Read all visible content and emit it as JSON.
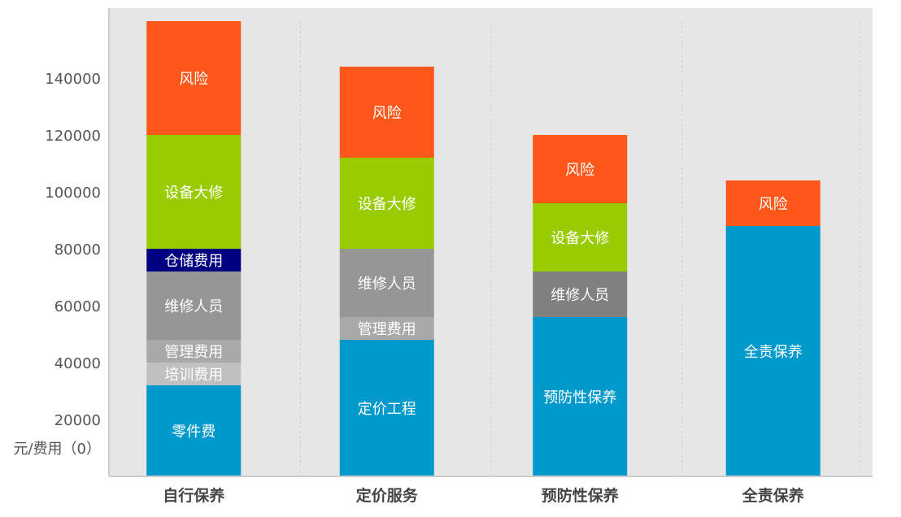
{
  "chart_data": {
    "type": "bar",
    "stacked": true,
    "categories": [
      "自行保养",
      "定价服务",
      "预防性保养",
      "全责保养"
    ],
    "ylabel": "元/费用（0）",
    "ylim": [
      0,
      160000
    ],
    "yticks": [
      "20000",
      "40000",
      "60000",
      "80000",
      "100000",
      "120000",
      "140000"
    ],
    "grid": "vertical-dashed",
    "plot_background": "#e6e6e6",
    "bars": [
      {
        "category": "自行保养",
        "segments": [
          {
            "label": "零件费",
            "value": 32000,
            "color": "#0099cc"
          },
          {
            "label": "培训费用",
            "value": 8000,
            "color": "#c0c0c0"
          },
          {
            "label": "管理费用",
            "value": 8000,
            "color": "#a9a9a9"
          },
          {
            "label": "维修人员",
            "value": 24000,
            "color": "#969696"
          },
          {
            "label": "仓储费用",
            "value": 8000,
            "color": "#000080"
          },
          {
            "label": "设备大修",
            "value": 40000,
            "color": "#99cc00"
          },
          {
            "label": "风险",
            "value": 40000,
            "color": "#ff5719"
          }
        ]
      },
      {
        "category": "定价服务",
        "segments": [
          {
            "label": "定价工程",
            "value": 48000,
            "color": "#0099cc"
          },
          {
            "label": "管理费用",
            "value": 8000,
            "color": "#a9a9a9"
          },
          {
            "label": "维修人员",
            "value": 24000,
            "color": "#969696"
          },
          {
            "label": "设备大修",
            "value": 32000,
            "color": "#99cc00"
          },
          {
            "label": "风险",
            "value": 32000,
            "color": "#ff5719"
          }
        ]
      },
      {
        "category": "预防性保养",
        "segments": [
          {
            "label": "预防性保养",
            "value": 56000,
            "color": "#0099cc"
          },
          {
            "label": "维修人员",
            "value": 16000,
            "color": "#808080"
          },
          {
            "label": "设备大修",
            "value": 24000,
            "color": "#99cc00"
          },
          {
            "label": "风险",
            "value": 24000,
            "color": "#ff5719"
          }
        ]
      },
      {
        "category": "全责保养",
        "segments": [
          {
            "label": "全责保养",
            "value": 88000,
            "color": "#0099cc"
          },
          {
            "label": "风险",
            "value": 16000,
            "color": "#ff5719"
          }
        ]
      }
    ]
  }
}
